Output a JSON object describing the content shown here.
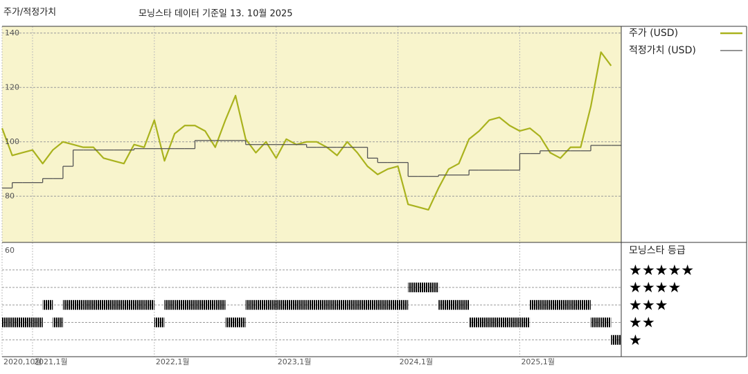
{
  "chart_data": {
    "type": "line",
    "title": "주가/적정가치",
    "subtitle": "모닝스타 데이터 기준일 13. 10월 2025",
    "x": [
      "2020-10",
      "2020-11",
      "2020-12",
      "2021-01",
      "2021-02",
      "2021-03",
      "2021-04",
      "2021-05",
      "2021-06",
      "2021-07",
      "2021-08",
      "2021-09",
      "2021-10",
      "2021-11",
      "2021-12",
      "2022-01",
      "2022-02",
      "2022-03",
      "2022-04",
      "2022-05",
      "2022-06",
      "2022-07",
      "2022-08",
      "2022-09",
      "2022-10",
      "2022-11",
      "2022-12",
      "2023-01",
      "2023-02",
      "2023-03",
      "2023-04",
      "2023-05",
      "2023-06",
      "2023-07",
      "2023-08",
      "2023-09",
      "2023-10",
      "2023-11",
      "2023-12",
      "2024-01",
      "2024-02",
      "2024-03",
      "2024-04",
      "2024-05",
      "2024-06",
      "2024-07",
      "2024-08",
      "2024-09",
      "2024-10",
      "2024-11",
      "2024-12",
      "2025-01",
      "2025-02",
      "2025-03",
      "2025-04",
      "2025-05",
      "2025-06",
      "2025-07",
      "2025-08",
      "2025-09",
      "2025-10"
    ],
    "xlim": [
      "2020-10",
      "2025-11"
    ],
    "xticks": [
      {
        "value": "2020-10",
        "label": "2020,10월"
      },
      {
        "value": "2021-01",
        "label": "2021,1월"
      },
      {
        "value": "2022-01",
        "label": "2022,1월"
      },
      {
        "value": "2023-01",
        "label": "2023,1월"
      },
      {
        "value": "2024-01",
        "label": "2024,1월"
      },
      {
        "value": "2025-01",
        "label": "2025,1월"
      }
    ],
    "ylim": [
      63,
      142.5
    ],
    "yticks": [
      60,
      80,
      100,
      120,
      140
    ],
    "grid": true,
    "series": [
      {
        "name": "주가 (USD)",
        "color": "#a9b21d",
        "values": [
          105,
          95,
          96,
          97,
          92,
          97,
          100,
          99,
          98,
          98,
          94,
          93,
          92,
          99,
          98,
          108,
          93,
          103,
          106,
          106,
          104,
          98,
          108,
          117,
          101,
          96,
          100,
          94,
          101,
          99,
          100,
          100,
          98,
          95,
          100,
          96,
          91,
          88,
          90,
          91,
          77,
          76,
          75,
          83,
          90,
          92,
          101,
          104,
          108,
          109,
          106,
          104,
          105,
          102,
          96,
          94,
          98,
          98,
          113,
          133,
          128
        ]
      },
      {
        "name": "적정가치 (USD)",
        "color": "#555555",
        "step": true,
        "values": [
          83,
          85,
          85,
          85,
          86.5,
          86.5,
          91,
          97,
          97,
          97,
          97,
          97,
          97,
          97.5,
          97.5,
          97.5,
          97.5,
          97.5,
          97.5,
          100.5,
          100.5,
          100.5,
          100.5,
          100.5,
          99,
          99,
          99,
          99,
          99,
          99,
          98,
          98,
          98,
          98,
          98,
          98,
          94,
          92.4,
          92.4,
          92.4,
          87.3,
          87.3,
          87.3,
          87.8,
          87.8,
          87.8,
          89.6,
          89.6,
          89.6,
          89.6,
          89.6,
          95.7,
          95.7,
          96.7,
          96.7,
          96.7,
          96.7,
          96.7,
          98.7,
          98.7,
          98.7
        ]
      }
    ],
    "rating": {
      "title": "모닝스타 등급",
      "levels": [
        5,
        4,
        3,
        2,
        1
      ],
      "labels": [
        "★★★★★",
        "★★★★",
        "★★★",
        "★★",
        "★"
      ],
      "color": "#000000",
      "values": [
        2,
        2,
        2,
        2,
        3,
        2,
        3,
        3,
        3,
        3,
        3,
        3,
        3,
        3,
        3,
        2,
        3,
        3,
        3,
        3,
        3,
        3,
        2,
        2,
        3,
        3,
        3,
        3,
        3,
        3,
        3,
        3,
        3,
        3,
        3,
        3,
        3,
        3,
        3,
        3,
        4,
        4,
        4,
        3,
        3,
        3,
        2,
        2,
        2,
        2,
        2,
        2,
        3,
        3,
        3,
        3,
        3,
        3,
        2,
        2,
        1
      ]
    }
  }
}
